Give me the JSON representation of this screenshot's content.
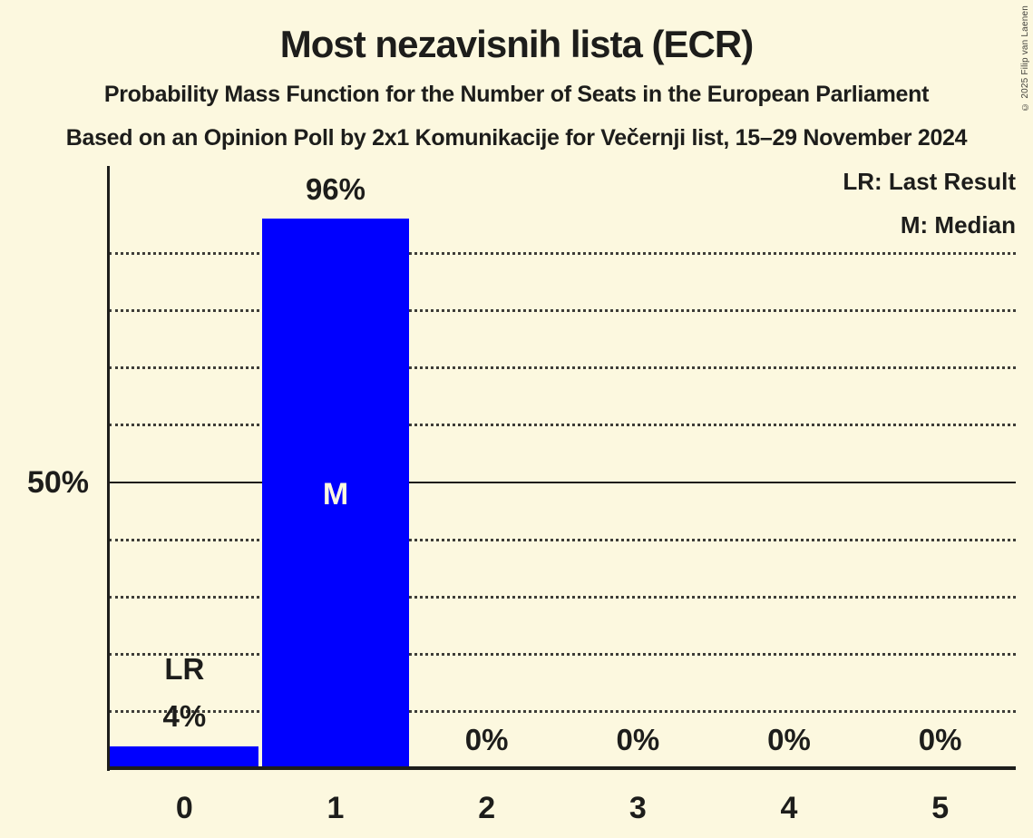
{
  "header": {
    "title": "Most nezavisnih lista (ECR)",
    "subtitle": "Probability Mass Function for the Number of Seats in the European Parliament",
    "source_line": "Based on an Opinion Poll by 2x1 Komunikacije for Večernji list, 15–29 November 2024",
    "copyright": "© 2025 Filip van Laenen"
  },
  "legend": {
    "last_result": "LR: Last Result",
    "median": "M: Median"
  },
  "y_axis": {
    "reference_label": "50%"
  },
  "colors": {
    "background": "#fcf8df",
    "bar": "#0000ff",
    "text": "#1d1d1b",
    "inside_bar_label": "#fcf8df"
  },
  "chart_data": {
    "type": "bar",
    "title": "Most nezavisnih lista (ECR)",
    "categories": [
      "0",
      "1",
      "2",
      "3",
      "4",
      "5"
    ],
    "values": [
      4,
      96,
      0,
      0,
      0,
      0
    ],
    "value_labels": [
      "4%",
      "96%",
      "0%",
      "0%",
      "0%",
      "0%"
    ],
    "xlabel": "",
    "ylabel": "",
    "ylim": [
      0,
      100
    ],
    "y_gridlines_pct": [
      10,
      20,
      30,
      40,
      60,
      70,
      80,
      90
    ],
    "y_reference_pct": 50,
    "grid_style": "dotted",
    "legend_position": "top-right",
    "annotations": [
      {
        "category_index": 0,
        "label": "LR",
        "meaning": "Last Result",
        "placement": "above-value-label"
      },
      {
        "category_index": 1,
        "label": "M",
        "meaning": "Median",
        "placement": "inside-bar"
      }
    ]
  }
}
